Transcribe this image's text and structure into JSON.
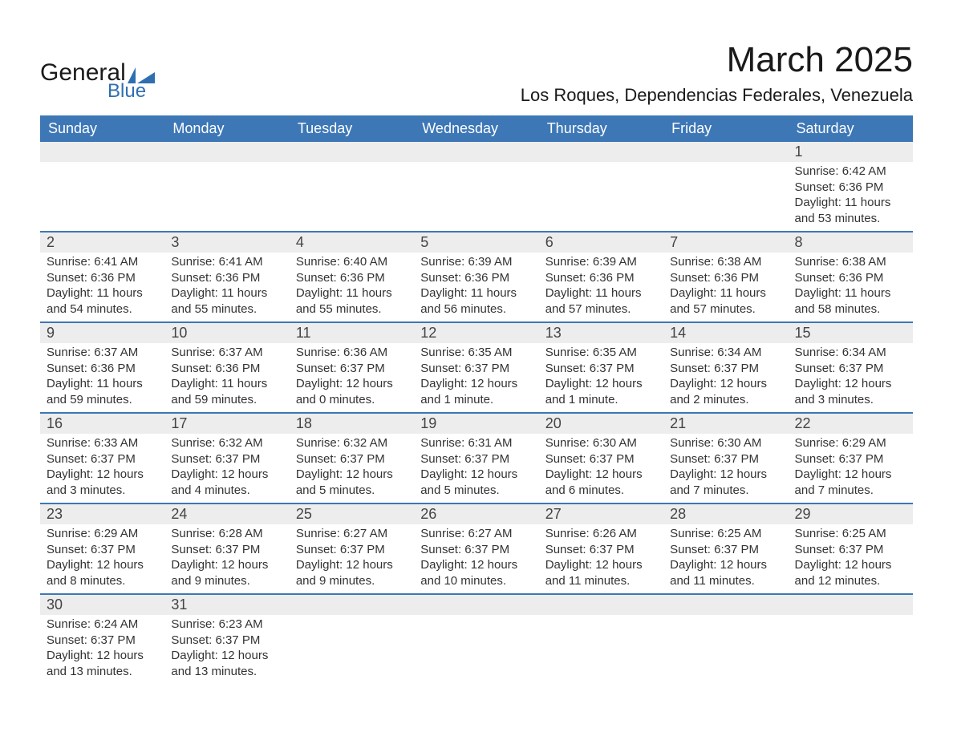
{
  "brand": {
    "name_primary": "General",
    "name_secondary": "Blue",
    "color_primary": "#1a1a1a",
    "color_secondary": "#2f6fb0"
  },
  "title": "March 2025",
  "location": "Los Roques, Dependencias Federales, Venezuela",
  "colors": {
    "header_bg": "#3d77b6",
    "header_text": "#ffffff",
    "daynum_bg": "#ededed",
    "text": "#333333",
    "divider": "#3d77b6",
    "background": "#ffffff"
  },
  "typography": {
    "title_fontsize": 44,
    "location_fontsize": 22,
    "header_fontsize": 18,
    "daynum_fontsize": 18,
    "body_fontsize": 15
  },
  "day_headers": [
    "Sunday",
    "Monday",
    "Tuesday",
    "Wednesday",
    "Thursday",
    "Friday",
    "Saturday"
  ],
  "weeks": [
    [
      {
        "num": "",
        "sunrise": "",
        "sunset": "",
        "daylight1": "",
        "daylight2": ""
      },
      {
        "num": "",
        "sunrise": "",
        "sunset": "",
        "daylight1": "",
        "daylight2": ""
      },
      {
        "num": "",
        "sunrise": "",
        "sunset": "",
        "daylight1": "",
        "daylight2": ""
      },
      {
        "num": "",
        "sunrise": "",
        "sunset": "",
        "daylight1": "",
        "daylight2": ""
      },
      {
        "num": "",
        "sunrise": "",
        "sunset": "",
        "daylight1": "",
        "daylight2": ""
      },
      {
        "num": "",
        "sunrise": "",
        "sunset": "",
        "daylight1": "",
        "daylight2": ""
      },
      {
        "num": "1",
        "sunrise": "Sunrise: 6:42 AM",
        "sunset": "Sunset: 6:36 PM",
        "daylight1": "Daylight: 11 hours",
        "daylight2": "and 53 minutes."
      }
    ],
    [
      {
        "num": "2",
        "sunrise": "Sunrise: 6:41 AM",
        "sunset": "Sunset: 6:36 PM",
        "daylight1": "Daylight: 11 hours",
        "daylight2": "and 54 minutes."
      },
      {
        "num": "3",
        "sunrise": "Sunrise: 6:41 AM",
        "sunset": "Sunset: 6:36 PM",
        "daylight1": "Daylight: 11 hours",
        "daylight2": "and 55 minutes."
      },
      {
        "num": "4",
        "sunrise": "Sunrise: 6:40 AM",
        "sunset": "Sunset: 6:36 PM",
        "daylight1": "Daylight: 11 hours",
        "daylight2": "and 55 minutes."
      },
      {
        "num": "5",
        "sunrise": "Sunrise: 6:39 AM",
        "sunset": "Sunset: 6:36 PM",
        "daylight1": "Daylight: 11 hours",
        "daylight2": "and 56 minutes."
      },
      {
        "num": "6",
        "sunrise": "Sunrise: 6:39 AM",
        "sunset": "Sunset: 6:36 PM",
        "daylight1": "Daylight: 11 hours",
        "daylight2": "and 57 minutes."
      },
      {
        "num": "7",
        "sunrise": "Sunrise: 6:38 AM",
        "sunset": "Sunset: 6:36 PM",
        "daylight1": "Daylight: 11 hours",
        "daylight2": "and 57 minutes."
      },
      {
        "num": "8",
        "sunrise": "Sunrise: 6:38 AM",
        "sunset": "Sunset: 6:36 PM",
        "daylight1": "Daylight: 11 hours",
        "daylight2": "and 58 minutes."
      }
    ],
    [
      {
        "num": "9",
        "sunrise": "Sunrise: 6:37 AM",
        "sunset": "Sunset: 6:36 PM",
        "daylight1": "Daylight: 11 hours",
        "daylight2": "and 59 minutes."
      },
      {
        "num": "10",
        "sunrise": "Sunrise: 6:37 AM",
        "sunset": "Sunset: 6:36 PM",
        "daylight1": "Daylight: 11 hours",
        "daylight2": "and 59 minutes."
      },
      {
        "num": "11",
        "sunrise": "Sunrise: 6:36 AM",
        "sunset": "Sunset: 6:37 PM",
        "daylight1": "Daylight: 12 hours",
        "daylight2": "and 0 minutes."
      },
      {
        "num": "12",
        "sunrise": "Sunrise: 6:35 AM",
        "sunset": "Sunset: 6:37 PM",
        "daylight1": "Daylight: 12 hours",
        "daylight2": "and 1 minute."
      },
      {
        "num": "13",
        "sunrise": "Sunrise: 6:35 AM",
        "sunset": "Sunset: 6:37 PM",
        "daylight1": "Daylight: 12 hours",
        "daylight2": "and 1 minute."
      },
      {
        "num": "14",
        "sunrise": "Sunrise: 6:34 AM",
        "sunset": "Sunset: 6:37 PM",
        "daylight1": "Daylight: 12 hours",
        "daylight2": "and 2 minutes."
      },
      {
        "num": "15",
        "sunrise": "Sunrise: 6:34 AM",
        "sunset": "Sunset: 6:37 PM",
        "daylight1": "Daylight: 12 hours",
        "daylight2": "and 3 minutes."
      }
    ],
    [
      {
        "num": "16",
        "sunrise": "Sunrise: 6:33 AM",
        "sunset": "Sunset: 6:37 PM",
        "daylight1": "Daylight: 12 hours",
        "daylight2": "and 3 minutes."
      },
      {
        "num": "17",
        "sunrise": "Sunrise: 6:32 AM",
        "sunset": "Sunset: 6:37 PM",
        "daylight1": "Daylight: 12 hours",
        "daylight2": "and 4 minutes."
      },
      {
        "num": "18",
        "sunrise": "Sunrise: 6:32 AM",
        "sunset": "Sunset: 6:37 PM",
        "daylight1": "Daylight: 12 hours",
        "daylight2": "and 5 minutes."
      },
      {
        "num": "19",
        "sunrise": "Sunrise: 6:31 AM",
        "sunset": "Sunset: 6:37 PM",
        "daylight1": "Daylight: 12 hours",
        "daylight2": "and 5 minutes."
      },
      {
        "num": "20",
        "sunrise": "Sunrise: 6:30 AM",
        "sunset": "Sunset: 6:37 PM",
        "daylight1": "Daylight: 12 hours",
        "daylight2": "and 6 minutes."
      },
      {
        "num": "21",
        "sunrise": "Sunrise: 6:30 AM",
        "sunset": "Sunset: 6:37 PM",
        "daylight1": "Daylight: 12 hours",
        "daylight2": "and 7 minutes."
      },
      {
        "num": "22",
        "sunrise": "Sunrise: 6:29 AM",
        "sunset": "Sunset: 6:37 PM",
        "daylight1": "Daylight: 12 hours",
        "daylight2": "and 7 minutes."
      }
    ],
    [
      {
        "num": "23",
        "sunrise": "Sunrise: 6:29 AM",
        "sunset": "Sunset: 6:37 PM",
        "daylight1": "Daylight: 12 hours",
        "daylight2": "and 8 minutes."
      },
      {
        "num": "24",
        "sunrise": "Sunrise: 6:28 AM",
        "sunset": "Sunset: 6:37 PM",
        "daylight1": "Daylight: 12 hours",
        "daylight2": "and 9 minutes."
      },
      {
        "num": "25",
        "sunrise": "Sunrise: 6:27 AM",
        "sunset": "Sunset: 6:37 PM",
        "daylight1": "Daylight: 12 hours",
        "daylight2": "and 9 minutes."
      },
      {
        "num": "26",
        "sunrise": "Sunrise: 6:27 AM",
        "sunset": "Sunset: 6:37 PM",
        "daylight1": "Daylight: 12 hours",
        "daylight2": "and 10 minutes."
      },
      {
        "num": "27",
        "sunrise": "Sunrise: 6:26 AM",
        "sunset": "Sunset: 6:37 PM",
        "daylight1": "Daylight: 12 hours",
        "daylight2": "and 11 minutes."
      },
      {
        "num": "28",
        "sunrise": "Sunrise: 6:25 AM",
        "sunset": "Sunset: 6:37 PM",
        "daylight1": "Daylight: 12 hours",
        "daylight2": "and 11 minutes."
      },
      {
        "num": "29",
        "sunrise": "Sunrise: 6:25 AM",
        "sunset": "Sunset: 6:37 PM",
        "daylight1": "Daylight: 12 hours",
        "daylight2": "and 12 minutes."
      }
    ],
    [
      {
        "num": "30",
        "sunrise": "Sunrise: 6:24 AM",
        "sunset": "Sunset: 6:37 PM",
        "daylight1": "Daylight: 12 hours",
        "daylight2": "and 13 minutes."
      },
      {
        "num": "31",
        "sunrise": "Sunrise: 6:23 AM",
        "sunset": "Sunset: 6:37 PM",
        "daylight1": "Daylight: 12 hours",
        "daylight2": "and 13 minutes."
      },
      {
        "num": "",
        "sunrise": "",
        "sunset": "",
        "daylight1": "",
        "daylight2": ""
      },
      {
        "num": "",
        "sunrise": "",
        "sunset": "",
        "daylight1": "",
        "daylight2": ""
      },
      {
        "num": "",
        "sunrise": "",
        "sunset": "",
        "daylight1": "",
        "daylight2": ""
      },
      {
        "num": "",
        "sunrise": "",
        "sunset": "",
        "daylight1": "",
        "daylight2": ""
      },
      {
        "num": "",
        "sunrise": "",
        "sunset": "",
        "daylight1": "",
        "daylight2": ""
      }
    ]
  ]
}
